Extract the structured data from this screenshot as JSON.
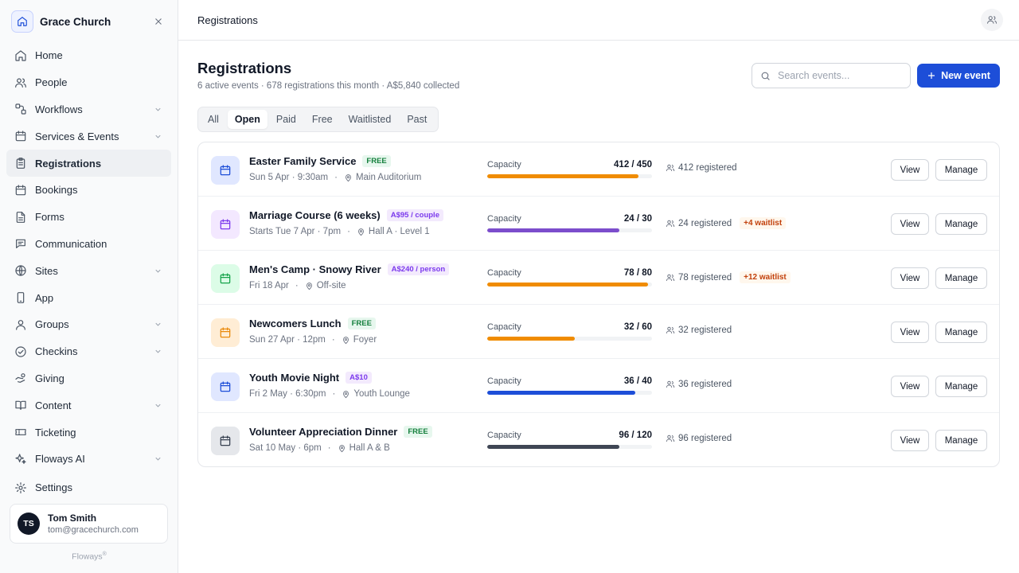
{
  "brand": {
    "name": "Grace Church"
  },
  "nav": [
    {
      "label": "Home",
      "icon": "home-icon",
      "chevron": false,
      "active": false
    },
    {
      "label": "People",
      "icon": "people-icon",
      "chevron": false,
      "active": false
    },
    {
      "label": "Workflows",
      "icon": "workflow-icon",
      "chevron": true,
      "active": false
    },
    {
      "label": "Services & Events",
      "icon": "calendar-icon",
      "chevron": true,
      "active": false
    },
    {
      "label": "Registrations",
      "icon": "clipboard-icon",
      "chevron": false,
      "active": true
    },
    {
      "label": "Bookings",
      "icon": "calendar-icon",
      "chevron": false,
      "active": false
    },
    {
      "label": "Forms",
      "icon": "document-icon",
      "chevron": false,
      "active": false
    },
    {
      "label": "Communication",
      "icon": "chat-icon",
      "chevron": false,
      "active": false
    },
    {
      "label": "Sites",
      "icon": "globe-icon",
      "chevron": true,
      "active": false
    },
    {
      "label": "App",
      "icon": "phone-icon",
      "chevron": false,
      "active": false
    },
    {
      "label": "Groups",
      "icon": "group-icon",
      "chevron": true,
      "active": false
    },
    {
      "label": "Checkins",
      "icon": "check-circle-icon",
      "chevron": true,
      "active": false
    },
    {
      "label": "Giving",
      "icon": "hand-coin-icon",
      "chevron": false,
      "active": false
    },
    {
      "label": "Content",
      "icon": "book-icon",
      "chevron": true,
      "active": false
    },
    {
      "label": "Ticketing",
      "icon": "ticket-icon",
      "chevron": false,
      "active": false
    },
    {
      "label": "Floways AI",
      "icon": "sparkle-icon",
      "chevron": true,
      "active": false
    }
  ],
  "settings": {
    "label": "Settings"
  },
  "user": {
    "initials": "TS",
    "name": "Tom Smith",
    "email": "tom@gracechurch.com"
  },
  "footer": {
    "brand": "Floways",
    "mark": "®"
  },
  "topbar": {
    "title": "Registrations"
  },
  "page": {
    "title": "Registrations",
    "subtitle": "6 active events · 678 registrations this month · A$5,840 collected"
  },
  "search": {
    "placeholder": "Search events..."
  },
  "new_button": {
    "label": "New event"
  },
  "tabs": [
    {
      "label": "All",
      "active": false
    },
    {
      "label": "Open",
      "active": true
    },
    {
      "label": "Paid",
      "active": false
    },
    {
      "label": "Free",
      "active": false
    },
    {
      "label": "Waitlisted",
      "active": false
    },
    {
      "label": "Past",
      "active": false
    }
  ],
  "capacity_label": "Capacity",
  "view_label": "View",
  "manage_label": "Manage",
  "events": [
    {
      "name": "Easter Family Service",
      "badge": "FREE",
      "badge_type": "free",
      "when": "Sun 5 Apr · 9:30am",
      "location": "Main Auditorium",
      "registered": 412,
      "capacity": 450,
      "capacity_text": "412 / 450",
      "registered_text": "412 registered",
      "waitlist": "",
      "color": "#f08c00",
      "icon_color": "#1d4ed8",
      "icon_bg": "#e0e7ff"
    },
    {
      "name": "Marriage Course (6 weeks)",
      "badge": "A$95 / couple",
      "badge_type": "paid",
      "when": "Starts Tue 7 Apr · 7pm",
      "location": "Hall A · Level 1",
      "registered": 24,
      "capacity": 30,
      "capacity_text": "24 / 30",
      "registered_text": "24 registered",
      "waitlist": "+4 waitlist",
      "color": "#7c4dcc",
      "icon_color": "#7c3aed",
      "icon_bg": "#f3e8ff"
    },
    {
      "name": "Men's Camp · Snowy River",
      "badge": "A$240 / person",
      "badge_type": "paid",
      "when": "Fri 18 Apr",
      "location": "Off-site",
      "registered": 78,
      "capacity": 80,
      "capacity_text": "78 / 80",
      "registered_text": "78 registered",
      "waitlist": "+12 waitlist",
      "color": "#f08c00",
      "icon_color": "#16a34a",
      "icon_bg": "#dcfce7"
    },
    {
      "name": "Newcomers Lunch",
      "badge": "FREE",
      "badge_type": "free",
      "when": "Sun 27 Apr · 12pm",
      "location": "Foyer",
      "registered": 32,
      "capacity": 60,
      "capacity_text": "32 / 60",
      "registered_text": "32 registered",
      "waitlist": "",
      "color": "#f08c00",
      "icon_color": "#ea8a0c",
      "icon_bg": "#ffedd5"
    },
    {
      "name": "Youth Movie Night",
      "badge": "A$10",
      "badge_type": "paid",
      "when": "Fri 2 May · 6:30pm",
      "location": "Youth Lounge",
      "registered": 36,
      "capacity": 40,
      "capacity_text": "36 / 40",
      "registered_text": "36 registered",
      "waitlist": "",
      "color": "#1d4ed8",
      "icon_color": "#1d4ed8",
      "icon_bg": "#e0e7ff"
    },
    {
      "name": "Volunteer Appreciation Dinner",
      "badge": "FREE",
      "badge_type": "free",
      "when": "Sat 10 May · 6pm",
      "location": "Hall A & B",
      "registered": 96,
      "capacity": 120,
      "capacity_text": "96 / 120",
      "registered_text": "96 registered",
      "waitlist": "",
      "color": "#3f4654",
      "icon_color": "#374151",
      "icon_bg": "#e5e7eb"
    }
  ]
}
